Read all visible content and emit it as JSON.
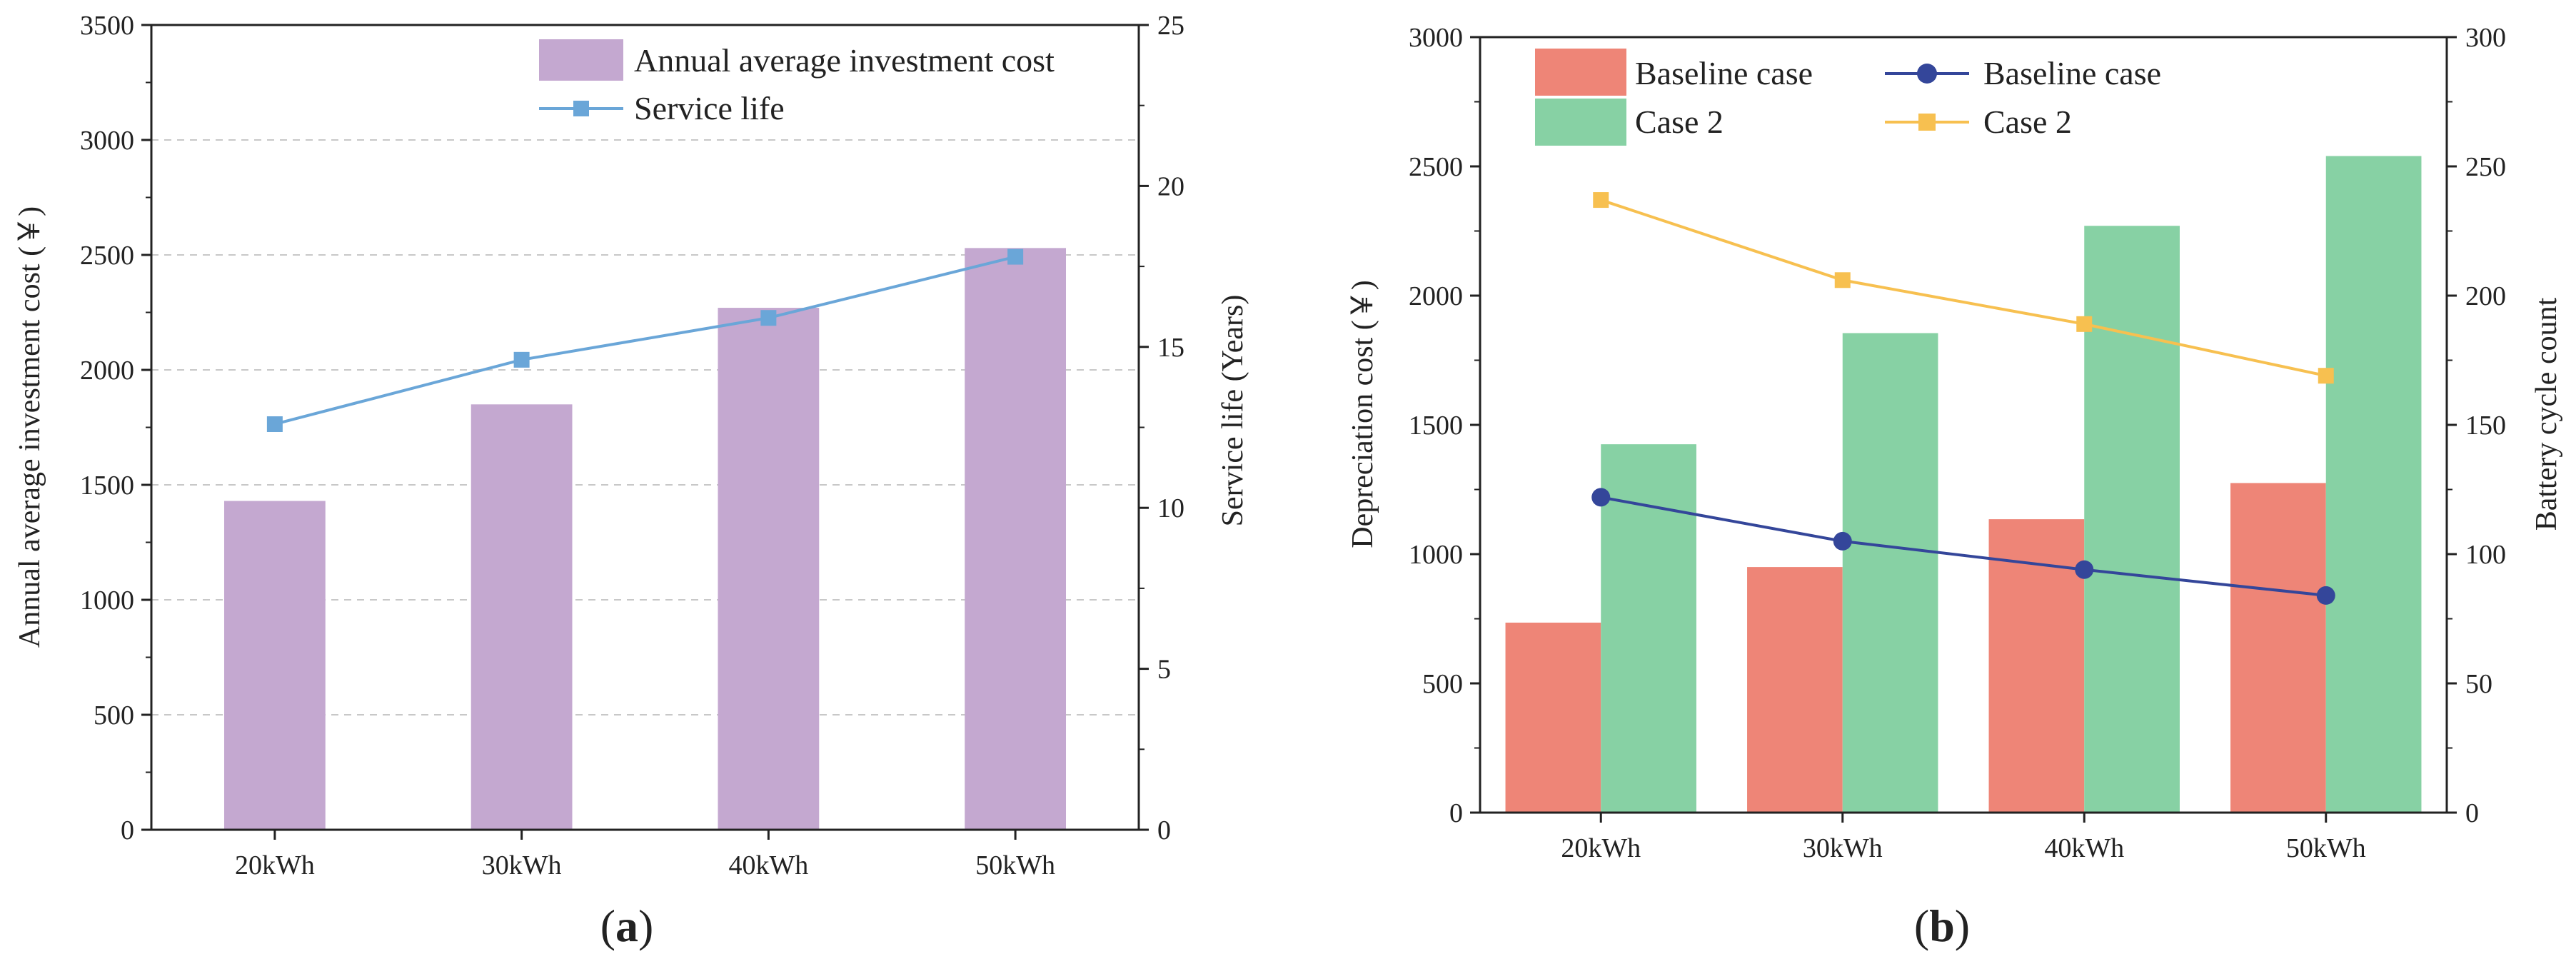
{
  "colors": {
    "purple_bar": "#c4a8d0",
    "service_line": "#6aa6d8",
    "baseline_bar": "#ee8577",
    "case2_bar": "#87d1a4",
    "baseline_line": "#34469a",
    "case2_line": "#f7c050",
    "axis": "#222222",
    "grid": "#c8c8c8"
  },
  "chart_data": [
    {
      "id": "a",
      "type": "bar+line",
      "panel_label": {
        "open": "(",
        "letter": "a",
        "close": ")"
      },
      "categories": [
        "20kWh",
        "30kWh",
        "40kWh",
        "50kWh"
      ],
      "bars": {
        "name": "Annual average investment cost",
        "values": [
          1430,
          1850,
          2270,
          2530
        ]
      },
      "line": {
        "name": "Service life",
        "axis": "right",
        "values": [
          12.6,
          14.6,
          15.9,
          17.8
        ]
      },
      "ylabel_left": "Annual average investment cost (￥)",
      "ylabel_right": "Service life (Years)",
      "ylim_left": [
        0,
        3500
      ],
      "ylim_right": [
        0,
        25
      ],
      "yticks_left": [
        "0",
        "500",
        "1000",
        "1500",
        "2000",
        "2500",
        "3000",
        "3500"
      ],
      "yticks_right": [
        "0",
        "5",
        "10",
        "15",
        "20",
        "25"
      ],
      "grid": true,
      "legend": [
        "Annual average investment cost",
        "Service life"
      ],
      "legend_position": "top-right"
    },
    {
      "id": "b",
      "type": "grouped-bar+line",
      "panel_label": {
        "open": "(",
        "letter": "b",
        "close": ")"
      },
      "categories": [
        "20kWh",
        "30kWh",
        "40kWh",
        "50kWh"
      ],
      "bar_series": [
        {
          "name": "Baseline case",
          "values": [
            735,
            950,
            1135,
            1275
          ]
        },
        {
          "name": "Case 2",
          "values": [
            1425,
            1855,
            2270,
            2540
          ]
        }
      ],
      "line_series": [
        {
          "name": "Baseline case",
          "axis": "right",
          "values": [
            122,
            105,
            94,
            84
          ]
        },
        {
          "name": "Case 2",
          "axis": "right",
          "values": [
            237,
            206,
            189,
            169
          ]
        }
      ],
      "ylabel_left": "Depreciation cost (￥)",
      "ylabel_right": "Battery cycle count",
      "ylim_left": [
        0,
        3000
      ],
      "ylim_right": [
        0,
        300
      ],
      "yticks_left": [
        "0",
        "500",
        "1000",
        "1500",
        "2000",
        "2500",
        "3000"
      ],
      "yticks_right": [
        "0",
        "50",
        "100",
        "150",
        "200",
        "250",
        "300"
      ],
      "grid": false,
      "legend_bars": [
        "Baseline case",
        "Case 2"
      ],
      "legend_lines": [
        "Baseline case",
        "Case 2"
      ],
      "legend_position": "top-left"
    }
  ]
}
